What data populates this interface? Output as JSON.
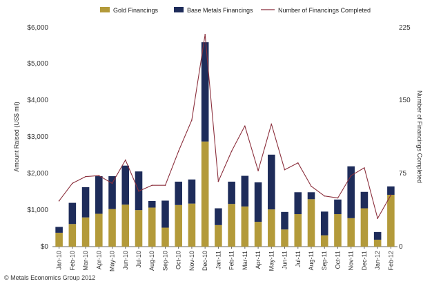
{
  "chart_data": {
    "type": "bar",
    "stacked": true,
    "categories": [
      "Jan-10",
      "Feb-10",
      "Mar-10",
      "Apr-10",
      "May-10",
      "Jun-10",
      "Jul-10",
      "Aug-10",
      "Sep-10",
      "Oct-10",
      "Nov-10",
      "Dec-10",
      "Jan-11",
      "Feb-11",
      "Mar-11",
      "Apr-11",
      "May-11",
      "Jun-11",
      "Jul-11",
      "Aug-11",
      "Sep-11",
      "Oct-11",
      "Nov-11",
      "Dec-11",
      "Jan-12",
      "Feb-12"
    ],
    "series": [
      {
        "name": "Gold Financings",
        "axis": "left",
        "color": "#B39A3A",
        "values": [
          380,
          620,
          800,
          900,
          1030,
          1150,
          1000,
          1070,
          520,
          1140,
          1180,
          2880,
          590,
          1170,
          1100,
          680,
          1020,
          470,
          890,
          1300,
          310,
          890,
          780,
          1050,
          190,
          1420
        ]
      },
      {
        "name": "Base Metals Financings",
        "axis": "left",
        "color": "#1E2C5A",
        "values": [
          160,
          580,
          830,
          1030,
          900,
          1070,
          1060,
          180,
          740,
          640,
          660,
          2720,
          460,
          610,
          840,
          1080,
          1500,
          480,
          600,
          190,
          650,
          400,
          1420,
          450,
          210,
          230
        ]
      },
      {
        "name": "Number of Financings Completed",
        "axis": "right",
        "type": "line",
        "color": "#8B2F3C",
        "values": [
          47,
          65,
          72,
          73,
          65,
          89,
          57,
          63,
          63,
          98,
          130,
          218,
          67,
          98,
          124,
          78,
          126,
          79,
          86,
          62,
          52,
          50,
          73,
          81,
          29,
          53
        ]
      }
    ],
    "ylabel": "Amount Raised (US$ mil)",
    "ylim": [
      0,
      6000
    ],
    "yticks": [
      "$0",
      "$1,000",
      "$2,000",
      "$3,000",
      "$4,000",
      "$5,000",
      "$6,000"
    ],
    "y2label": "Number of Financings Completed",
    "y2lim": [
      0,
      225
    ],
    "y2ticks": [
      "0",
      "75",
      "150",
      "225"
    ],
    "legend": [
      "Gold Financings",
      "Base Metals Financings",
      "Number of Financings Completed"
    ],
    "legend_position": "top",
    "grid": false,
    "copyright": "© Metals Economics Group 2012"
  }
}
